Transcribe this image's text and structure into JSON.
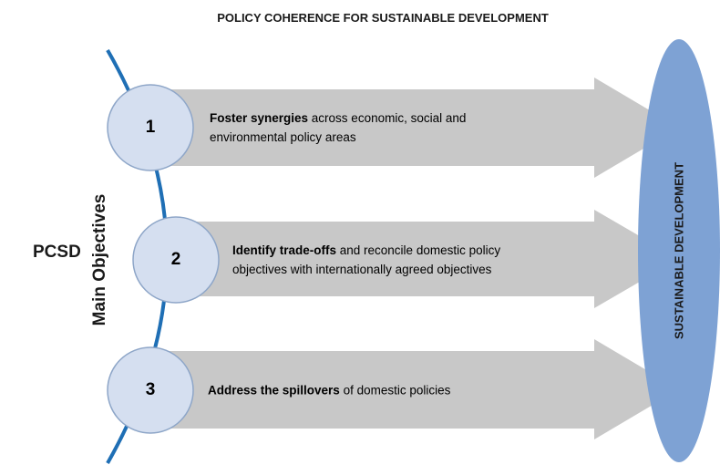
{
  "title": "POLICY COHERENCE FOR SUSTAINABLE DEVELOPMENT",
  "left_label": "PCSD",
  "axis_label": "Main Objectives",
  "goal": "SUSTAINABLE DEVELOPMENT",
  "items": [
    {
      "number": "1",
      "bold": "Foster synergies",
      "text": " across economic, social and environmental policy areas"
    },
    {
      "number": "2",
      "bold": "Identify trade-offs",
      "text": " and reconcile domestic policy objectives with internationally agreed objectives"
    },
    {
      "number": "3",
      "bold": "Address the spillovers",
      "text": " of domestic policies"
    }
  ]
}
